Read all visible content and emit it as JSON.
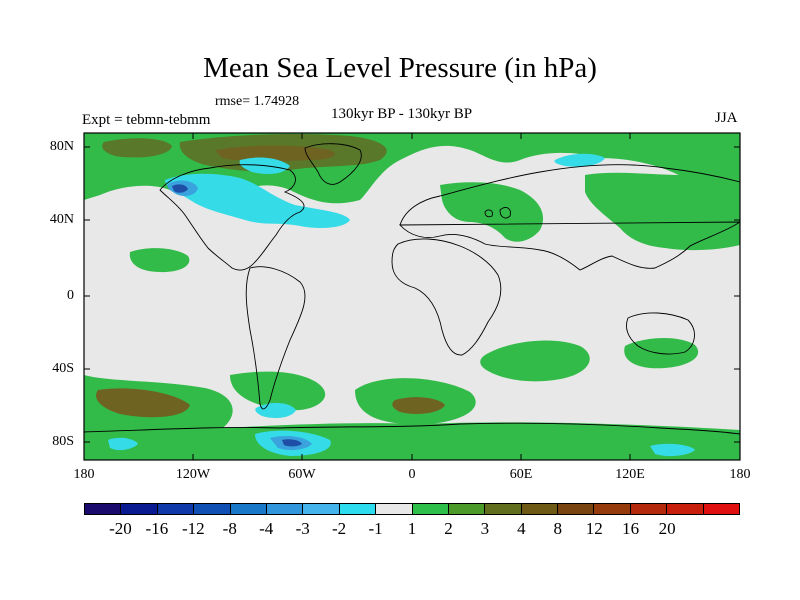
{
  "title": "Mean Sea Level Pressure (in hPa)",
  "rmse": "rmse= 1.74928",
  "experiment": "Expt = tebmn-tebmm",
  "period": "130kyr BP - 130kyr BP",
  "season": "JJA",
  "axes": {
    "y_ticks": [
      "80N",
      "40N",
      "0",
      "40S",
      "80S"
    ],
    "x_ticks": [
      "180",
      "120W",
      "60W",
      "0",
      "60E",
      "120E",
      "180"
    ]
  },
  "colorbar": {
    "colors": [
      "#1a0a6e",
      "#0a1a90",
      "#0f38a8",
      "#1050b4",
      "#1a78c8",
      "#3296dc",
      "#46b4ec",
      "#2edcf0",
      "#e8e8e8",
      "#2ebe4a",
      "#4c9a2a",
      "#606e1e",
      "#6e5a14",
      "#7a4410",
      "#963c0c",
      "#b4280c",
      "#c81e0c",
      "#e01010"
    ],
    "labels": [
      "-20",
      "-16",
      "-12",
      "-8",
      "-4",
      "-3",
      "-2",
      "-1",
      "1",
      "2",
      "3",
      "4",
      "8",
      "12",
      "16",
      "20"
    ]
  },
  "palette": {
    "green": "#33bb4a",
    "darkgreen": "#597829",
    "olive": "#6f6322",
    "cyan": "#35dbe6",
    "blue": "#3aa2dc",
    "deepblue": "#1f4ea6",
    "grey": "#e8e8e8"
  }
}
